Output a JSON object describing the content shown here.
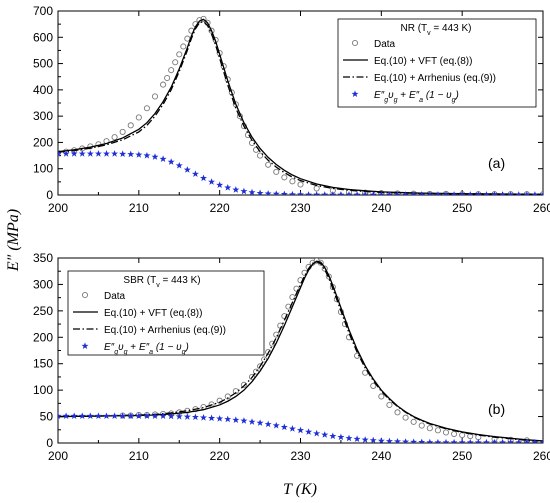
{
  "chart_data": [
    {
      "type": "line",
      "panel_label": "(a)",
      "legend_title": "NR  (T",
      "legend_title_sub": "v",
      "legend_title_tail": " = 443  K)",
      "legend_placement": "top-right",
      "xlim": [
        200,
        260
      ],
      "ylim": [
        0,
        700
      ],
      "xticks": [
        200,
        210,
        220,
        230,
        240,
        250,
        260
      ],
      "yticks": [
        0,
        100,
        200,
        300,
        400,
        500,
        600,
        700
      ],
      "series": [
        {
          "name": "Data",
          "style": "open-circle",
          "color": "#7a7a7a",
          "x": [
            200,
            201,
            202,
            203,
            204,
            205,
            206,
            207,
            208,
            209,
            210,
            211,
            212,
            213,
            213.5,
            214,
            214.5,
            215,
            215.5,
            216,
            216.5,
            217,
            217.5,
            218,
            218.5,
            219,
            219.5,
            220,
            220.5,
            221,
            221.5,
            222,
            222.5,
            223,
            223.5,
            224,
            224.5,
            225,
            226,
            227,
            228,
            229,
            230,
            232,
            234,
            236,
            238,
            240,
            242,
            244,
            246,
            248,
            250,
            252,
            254,
            256,
            258,
            260
          ],
          "y": [
            160,
            165,
            170,
            177,
            185,
            193,
            205,
            220,
            240,
            265,
            295,
            330,
            375,
            420,
            445,
            475,
            505,
            535,
            565,
            595,
            625,
            650,
            665,
            670,
            655,
            625,
            590,
            540,
            490,
            440,
            390,
            345,
            300,
            262,
            228,
            198,
            172,
            150,
            115,
            88,
            67,
            52,
            40,
            25,
            17,
            12,
            9,
            7,
            6,
            5,
            4,
            4,
            3,
            3,
            3,
            3,
            3,
            3
          ]
        },
        {
          "name": "Eq.(10) + VFT (eq.(8))",
          "style": "solid",
          "color": "#000000",
          "x": [
            200,
            202,
            204,
            206,
            208,
            210,
            211,
            212,
            213,
            214,
            215,
            216,
            216.5,
            217,
            217.5,
            218,
            218.5,
            219,
            219.5,
            220,
            220.5,
            221,
            222,
            223,
            224,
            225,
            226,
            227,
            228,
            229,
            230,
            232,
            234,
            236,
            238,
            240,
            245,
            250,
            255,
            260
          ],
          "y": [
            165,
            172,
            182,
            196,
            217,
            250,
            275,
            310,
            355,
            410,
            480,
            560,
            605,
            640,
            662,
            668,
            655,
            625,
            585,
            535,
            485,
            435,
            345,
            275,
            220,
            177,
            143,
            116,
            94,
            76,
            62,
            42,
            29,
            21,
            16,
            12,
            7,
            5,
            4,
            3
          ]
        },
        {
          "name": "Eq.(10) + Arrhenius (eq.(9))",
          "style": "dash-dot",
          "color": "#000000",
          "x": [
            200,
            202,
            204,
            206,
            208,
            210,
            211,
            212,
            213,
            214,
            215,
            216,
            216.5,
            217,
            217.5,
            218,
            218.5,
            219,
            219.5,
            220,
            220.5,
            221,
            222,
            223,
            224,
            225,
            226,
            227,
            228,
            229,
            230,
            232,
            234,
            236,
            238,
            240,
            245,
            250,
            255,
            260
          ],
          "y": [
            163,
            169,
            178,
            191,
            210,
            240,
            265,
            300,
            345,
            400,
            470,
            550,
            595,
            632,
            655,
            660,
            645,
            612,
            570,
            520,
            468,
            418,
            330,
            262,
            208,
            165,
            132,
            106,
            85,
            68,
            55,
            36,
            25,
            18,
            13,
            10,
            6,
            4,
            3,
            3
          ]
        },
        {
          "name": "E″gυg + E″a (1 − υg)",
          "style": "blue-star",
          "color": "#1f2fd6",
          "x": [
            200,
            201,
            202,
            203,
            204,
            205,
            206,
            207,
            208,
            209,
            210,
            211,
            212,
            213,
            214,
            215,
            216,
            217,
            218,
            219,
            220,
            221,
            222,
            223,
            224,
            225,
            226,
            227,
            228,
            229,
            230,
            231,
            232,
            233,
            234,
            235,
            236,
            237,
            238,
            239,
            240,
            241,
            242,
            243,
            244,
            245,
            246,
            247,
            248,
            249,
            250,
            251,
            252,
            253,
            254,
            255,
            256,
            257,
            258,
            259,
            260
          ],
          "y": [
            157,
            157,
            157,
            157,
            157,
            157,
            157,
            157,
            156,
            155,
            153,
            150,
            145,
            137,
            126,
            112,
            96,
            80,
            64,
            50,
            38,
            28,
            20,
            14,
            10,
            7,
            5,
            4,
            3,
            2,
            2,
            1,
            1,
            1,
            1,
            1,
            1,
            1,
            1,
            1,
            1,
            1,
            1,
            1,
            1,
            1,
            1,
            1,
            1,
            1,
            1,
            1,
            1,
            1,
            1,
            1,
            1,
            1,
            1,
            1,
            1
          ]
        }
      ]
    },
    {
      "type": "line",
      "panel_label": "(b)",
      "legend_title": "SBR  (T",
      "legend_title_sub": "v",
      "legend_title_tail": " = 443 K)",
      "legend_placement": "top-left",
      "xlim": [
        200,
        260
      ],
      "ylim": [
        0,
        350
      ],
      "xticks": [
        200,
        210,
        220,
        230,
        240,
        250,
        260
      ],
      "yticks": [
        0,
        50,
        100,
        150,
        200,
        250,
        300,
        350
      ],
      "series": [
        {
          "name": "Data",
          "style": "open-circle",
          "color": "#7a7a7a",
          "x": [
            208,
            209,
            210,
            211,
            212,
            213,
            214,
            215,
            216,
            217,
            218,
            219,
            220,
            221,
            222,
            223,
            224,
            224.5,
            225,
            225.5,
            226,
            226.5,
            227,
            227.5,
            228,
            228.5,
            229,
            229.5,
            230,
            230.5,
            231,
            231.5,
            232,
            232.5,
            233,
            233.5,
            234,
            234.5,
            235,
            235.5,
            236,
            237,
            238,
            239,
            240,
            241,
            242,
            243,
            244,
            245,
            246,
            247,
            248,
            249,
            250,
            251,
            252,
            254,
            256,
            258
          ],
          "y": [
            52,
            52,
            53,
            53,
            54,
            55,
            56,
            58,
            61,
            64,
            68,
            73,
            80,
            88,
            98,
            110,
            125,
            135,
            145,
            158,
            172,
            188,
            205,
            222,
            240,
            258,
            276,
            292,
            308,
            322,
            333,
            341,
            345,
            341,
            330,
            315,
            295,
            272,
            248,
            225,
            200,
            165,
            133,
            108,
            88,
            72,
            58,
            48,
            40,
            33,
            28,
            24,
            20,
            17,
            15,
            13,
            11,
            8,
            6,
            5
          ]
        },
        {
          "name": "Eq.(10) + VFT (eq.(8))",
          "style": "solid",
          "color": "#000000",
          "x": [
            200,
            205,
            210,
            212,
            214,
            216,
            218,
            220,
            221,
            222,
            223,
            224,
            225,
            226,
            227,
            228,
            229,
            230,
            230.5,
            231,
            231.5,
            232,
            232.5,
            233,
            233.5,
            234,
            235,
            236,
            237,
            238,
            239,
            240,
            241,
            242,
            243,
            244,
            245,
            246,
            248,
            250,
            252,
            254,
            256,
            258,
            260
          ],
          "y": [
            50,
            51,
            52,
            53,
            55,
            58,
            63,
            72,
            79,
            88,
            100,
            116,
            136,
            160,
            189,
            222,
            258,
            294,
            312,
            327,
            338,
            344,
            342,
            332,
            317,
            298,
            256,
            214,
            177,
            146,
            121,
            100,
            84,
            70,
            59,
            50,
            43,
            37,
            28,
            21,
            16,
            12,
            9,
            6,
            4
          ]
        },
        {
          "name": "Eq.(10) + Arrhenius (eq.(9))",
          "style": "dash-dot",
          "color": "#000000",
          "x": [
            200,
            205,
            210,
            212,
            214,
            216,
            218,
            220,
            221,
            222,
            223,
            224,
            225,
            226,
            227,
            228,
            229,
            230,
            230.5,
            231,
            231.5,
            232,
            232.5,
            233,
            233.5,
            234,
            235,
            236,
            237,
            238,
            239,
            240,
            241,
            242,
            243,
            244,
            245,
            246,
            248,
            250,
            252,
            254,
            256,
            258,
            260
          ],
          "y": [
            50,
            51,
            53,
            54,
            57,
            61,
            67,
            77,
            85,
            95,
            108,
            124,
            145,
            170,
            199,
            232,
            266,
            300,
            316,
            330,
            340,
            343,
            339,
            328,
            312,
            292,
            250,
            208,
            172,
            142,
            118,
            98,
            82,
            69,
            58,
            49,
            42,
            36,
            27,
            20,
            15,
            11,
            8,
            5,
            4
          ]
        },
        {
          "name": "E″gυg + E″a (1 − υg)",
          "style": "blue-star",
          "color": "#1f2fd6",
          "x": [
            200,
            201,
            202,
            203,
            204,
            205,
            206,
            207,
            208,
            209,
            210,
            211,
            212,
            213,
            214,
            215,
            216,
            217,
            218,
            219,
            220,
            221,
            222,
            223,
            224,
            225,
            226,
            227,
            228,
            229,
            230,
            231,
            232,
            233,
            234,
            235,
            236,
            237,
            238,
            239,
            240,
            241,
            242,
            243,
            244,
            245,
            246,
            247,
            248,
            249,
            250,
            251,
            252,
            253,
            254,
            255,
            256,
            257,
            258,
            259,
            260
          ],
          "y": [
            51,
            51,
            51,
            51,
            51,
            51,
            51,
            51,
            51,
            51,
            51,
            51,
            51,
            51,
            50.5,
            50,
            49.5,
            49,
            48,
            47,
            46,
            45,
            43.5,
            42,
            40,
            38,
            35.5,
            33,
            30,
            27,
            24,
            21,
            18,
            15.5,
            13,
            11,
            9,
            7.5,
            6,
            5,
            4,
            3.3,
            2.7,
            2.2,
            1.8,
            1.5,
            1.2,
            1,
            1,
            1,
            1,
            1,
            1,
            1,
            1,
            1,
            1,
            1,
            1,
            1,
            1
          ]
        }
      ]
    }
  ],
  "shared_axes": {
    "xlabel": "T (K)",
    "ylabel": "E″ (MPa)"
  }
}
